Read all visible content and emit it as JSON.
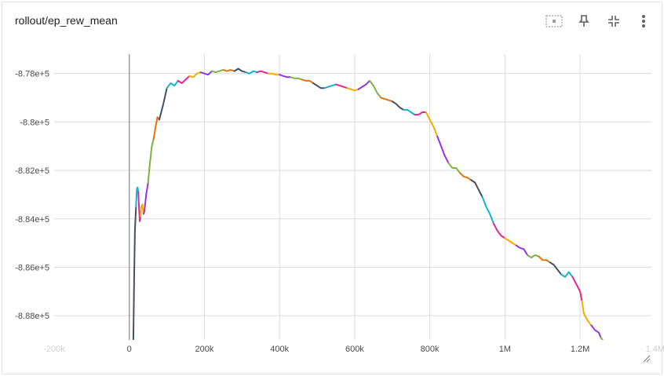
{
  "card": {
    "title": "rollout/ep_rew_mean"
  },
  "toolbar": {
    "items": [
      {
        "name": "fit-domain-icon",
        "tooltip": ""
      },
      {
        "name": "pin-icon",
        "tooltip": ""
      },
      {
        "name": "collapse-icon",
        "tooltip": ""
      },
      {
        "name": "more-vert-icon",
        "tooltip": ""
      }
    ]
  },
  "chart_data": {
    "type": "line",
    "title": "rollout/ep_rew_mean",
    "xlabel": "",
    "ylabel": "",
    "xlim": [
      -200000,
      1390000
    ],
    "ylim": [
      -889000,
      -877200
    ],
    "x_ticks": [
      {
        "value": -200000,
        "label": "-200k",
        "faint": true
      },
      {
        "value": 0,
        "label": "0",
        "faint": false
      },
      {
        "value": 200000,
        "label": "200k",
        "faint": false
      },
      {
        "value": 400000,
        "label": "400k",
        "faint": false
      },
      {
        "value": 600000,
        "label": "600k",
        "faint": false
      },
      {
        "value": 800000,
        "label": "800k",
        "faint": false
      },
      {
        "value": 1000000,
        "label": "1M",
        "faint": false
      },
      {
        "value": 1200000,
        "label": "1.2M",
        "faint": false
      },
      {
        "value": 1400000,
        "label": "1.4M",
        "faint": true
      }
    ],
    "y_ticks": [
      {
        "value": -878000,
        "label": "-8.78e+5"
      },
      {
        "value": -880000,
        "label": "-8.8e+5"
      },
      {
        "value": -882000,
        "label": "-8.82e+5"
      },
      {
        "value": -884000,
        "label": "-8.84e+5"
      },
      {
        "value": -886000,
        "label": "-8.86e+5"
      },
      {
        "value": -888000,
        "label": "-8.88e+5"
      }
    ],
    "grid": true,
    "zero_line": {
      "value": 0,
      "color": "#9e9e9e"
    },
    "colors": [
      "#425066",
      "#12b5cb",
      "#e52592",
      "#f9ab00",
      "#9334e6",
      "#7cb342",
      "#e8710a"
    ],
    "series": [
      {
        "points": [
          [
            10000,
            -890000
          ],
          [
            13000,
            -886500
          ],
          [
            15000,
            -884500
          ],
          [
            18000,
            -883500
          ],
          [
            20000,
            -882800
          ],
          [
            22000,
            -882700
          ],
          [
            24000,
            -882900
          ],
          [
            26000,
            -883600
          ],
          [
            28000,
            -884100
          ],
          [
            30000,
            -883900
          ],
          [
            32000,
            -883500
          ],
          [
            35000,
            -883400
          ],
          [
            38000,
            -883800
          ],
          [
            40000,
            -883700
          ],
          [
            45000,
            -883000
          ],
          [
            50000,
            -882500
          ],
          [
            55000,
            -881700
          ],
          [
            60000,
            -881000
          ],
          [
            65000,
            -880700
          ],
          [
            70000,
            -880200
          ],
          [
            75000,
            -879800
          ],
          [
            80000,
            -879900
          ],
          [
            85000,
            -879600
          ],
          [
            90000,
            -879300
          ],
          [
            100000,
            -878600
          ],
          [
            110000,
            -878400
          ],
          [
            120000,
            -878500
          ],
          [
            130000,
            -878300
          ],
          [
            140000,
            -878400
          ],
          [
            150000,
            -878250
          ],
          [
            160000,
            -878100
          ],
          [
            170000,
            -878150
          ],
          [
            180000,
            -878000
          ],
          [
            190000,
            -877950
          ],
          [
            200000,
            -878000
          ],
          [
            210000,
            -878050
          ],
          [
            220000,
            -877900
          ],
          [
            230000,
            -877950
          ],
          [
            240000,
            -877900
          ],
          [
            250000,
            -877850
          ],
          [
            260000,
            -877900
          ],
          [
            270000,
            -877850
          ],
          [
            280000,
            -877900
          ],
          [
            290000,
            -877800
          ],
          [
            300000,
            -877900
          ],
          [
            310000,
            -877950
          ],
          [
            320000,
            -878000
          ],
          [
            330000,
            -877900
          ],
          [
            340000,
            -877950
          ],
          [
            350000,
            -877900
          ],
          [
            360000,
            -877950
          ],
          [
            370000,
            -878000
          ],
          [
            380000,
            -878000
          ],
          [
            390000,
            -878050
          ],
          [
            400000,
            -878050
          ],
          [
            410000,
            -878100
          ],
          [
            420000,
            -878150
          ],
          [
            430000,
            -878150
          ],
          [
            440000,
            -878200
          ],
          [
            450000,
            -878200
          ],
          [
            460000,
            -878250
          ],
          [
            470000,
            -878300
          ],
          [
            480000,
            -878300
          ],
          [
            490000,
            -878400
          ],
          [
            500000,
            -878500
          ],
          [
            510000,
            -878600
          ],
          [
            520000,
            -878600
          ],
          [
            530000,
            -878550
          ],
          [
            540000,
            -878500
          ],
          [
            550000,
            -878450
          ],
          [
            560000,
            -878500
          ],
          [
            570000,
            -878550
          ],
          [
            580000,
            -878600
          ],
          [
            590000,
            -878650
          ],
          [
            600000,
            -878700
          ],
          [
            610000,
            -878650
          ],
          [
            620000,
            -878550
          ],
          [
            630000,
            -878450
          ],
          [
            640000,
            -878300
          ],
          [
            650000,
            -878500
          ],
          [
            660000,
            -878800
          ],
          [
            670000,
            -879000
          ],
          [
            680000,
            -879050
          ],
          [
            690000,
            -879100
          ],
          [
            700000,
            -879150
          ],
          [
            710000,
            -879250
          ],
          [
            720000,
            -879400
          ],
          [
            730000,
            -879500
          ],
          [
            740000,
            -879500
          ],
          [
            750000,
            -879600
          ],
          [
            760000,
            -879700
          ],
          [
            770000,
            -879700
          ],
          [
            780000,
            -879600
          ],
          [
            790000,
            -879600
          ],
          [
            800000,
            -879900
          ],
          [
            810000,
            -880200
          ],
          [
            820000,
            -880600
          ],
          [
            830000,
            -881000
          ],
          [
            840000,
            -881400
          ],
          [
            850000,
            -881700
          ],
          [
            860000,
            -881900
          ],
          [
            870000,
            -881900
          ],
          [
            880000,
            -882100
          ],
          [
            890000,
            -882250
          ],
          [
            900000,
            -882300
          ],
          [
            910000,
            -882400
          ],
          [
            920000,
            -882500
          ],
          [
            930000,
            -882800
          ],
          [
            940000,
            -883100
          ],
          [
            950000,
            -883500
          ],
          [
            960000,
            -883800
          ],
          [
            970000,
            -884200
          ],
          [
            980000,
            -884500
          ],
          [
            990000,
            -884700
          ],
          [
            1000000,
            -884800
          ],
          [
            1010000,
            -884900
          ],
          [
            1020000,
            -885000
          ],
          [
            1030000,
            -885100
          ],
          [
            1040000,
            -885200
          ],
          [
            1050000,
            -885250
          ],
          [
            1060000,
            -885500
          ],
          [
            1070000,
            -885600
          ],
          [
            1080000,
            -885500
          ],
          [
            1090000,
            -885550
          ],
          [
            1100000,
            -885700
          ],
          [
            1110000,
            -885700
          ],
          [
            1120000,
            -885800
          ],
          [
            1130000,
            -885900
          ],
          [
            1140000,
            -886100
          ],
          [
            1150000,
            -886300
          ],
          [
            1160000,
            -886400
          ],
          [
            1170000,
            -886200
          ],
          [
            1180000,
            -886400
          ],
          [
            1190000,
            -886700
          ],
          [
            1200000,
            -887000
          ],
          [
            1205000,
            -887400
          ],
          [
            1210000,
            -887900
          ],
          [
            1220000,
            -888200
          ],
          [
            1230000,
            -888400
          ],
          [
            1240000,
            -888600
          ],
          [
            1250000,
            -888700
          ],
          [
            1255000,
            -888900
          ],
          [
            1260000,
            -889000
          ],
          [
            1265000,
            -889200
          ]
        ]
      }
    ]
  }
}
